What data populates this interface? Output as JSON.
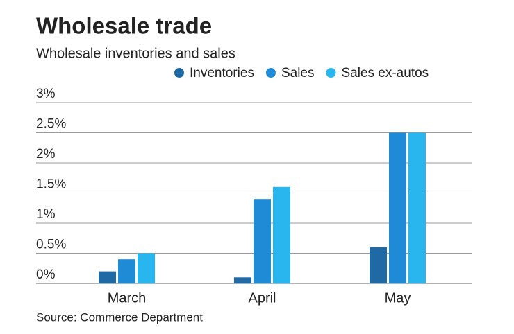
{
  "chart_data": {
    "type": "bar",
    "title": "Wholesale trade",
    "subtitle": "Wholesale inventories and sales",
    "categories": [
      "March",
      "April",
      "May"
    ],
    "series": [
      {
        "name": "Inventories",
        "color": "#1f6aa5",
        "values": [
          0.2,
          0.1,
          0.6
        ]
      },
      {
        "name": "Sales",
        "color": "#1f8ad6",
        "values": [
          0.4,
          1.4,
          2.5
        ]
      },
      {
        "name": "Sales ex-autos",
        "color": "#29b6ef",
        "values": [
          0.5,
          1.6,
          2.5
        ]
      }
    ],
    "ylim": [
      0,
      3
    ],
    "yticks": [
      {
        "value": 0,
        "label": "0%"
      },
      {
        "value": 0.5,
        "label": "0.5%"
      },
      {
        "value": 1,
        "label": "1%"
      },
      {
        "value": 1.5,
        "label": "1.5%"
      },
      {
        "value": 2,
        "label": "2%"
      },
      {
        "value": 2.5,
        "label": "2.5%"
      },
      {
        "value": 3,
        "label": "3%"
      }
    ],
    "grid": true,
    "source": "Source: Commerce Department"
  }
}
